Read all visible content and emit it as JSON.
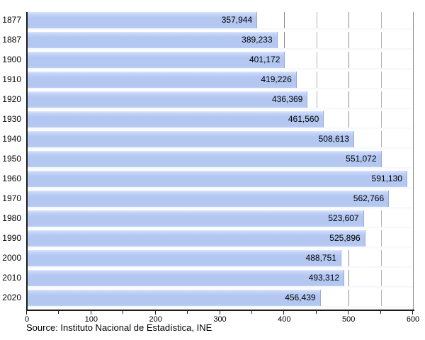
{
  "chart_data": {
    "type": "bar",
    "orientation": "horizontal",
    "title": "",
    "categories": [
      "1877",
      "1887",
      "1900",
      "1910",
      "1920",
      "1930",
      "1940",
      "1950",
      "1960",
      "1970",
      "1980",
      "1990",
      "2000",
      "2010",
      "2020"
    ],
    "values": [
      357944,
      389233,
      401172,
      419226,
      436369,
      461560,
      508613,
      551072,
      591130,
      562766,
      523607,
      525896,
      488751,
      493312,
      456439
    ],
    "value_labels": [
      "357,944",
      "389,233",
      "401,172",
      "419,226",
      "436,369",
      "461,560",
      "508,613",
      "551,072",
      "591,130",
      "562,766",
      "523,607",
      "525,896",
      "488,751",
      "493,312",
      "456,439"
    ],
    "xlabel": "",
    "ylabel": "",
    "xlim": [
      0,
      600
    ],
    "x_ticks": [
      0,
      100,
      200,
      300,
      400,
      500,
      600
    ],
    "x_minor_tick_interval": 50,
    "axis_unit_divisor": 1000,
    "grid": "vertical",
    "legend": "none",
    "source": "Source: Instituto Nacional de Estadística, INE",
    "colors": {
      "bar_fill": "#b3c7f1",
      "bar_fill_light": "#dde7fc",
      "bar_border": "#96acdf",
      "gridline_minor": "#b3b3b3",
      "gridline_major": "#8a8a8a",
      "axis": "#1a1a1a",
      "text": "#000000",
      "background": "#ffffff"
    }
  }
}
